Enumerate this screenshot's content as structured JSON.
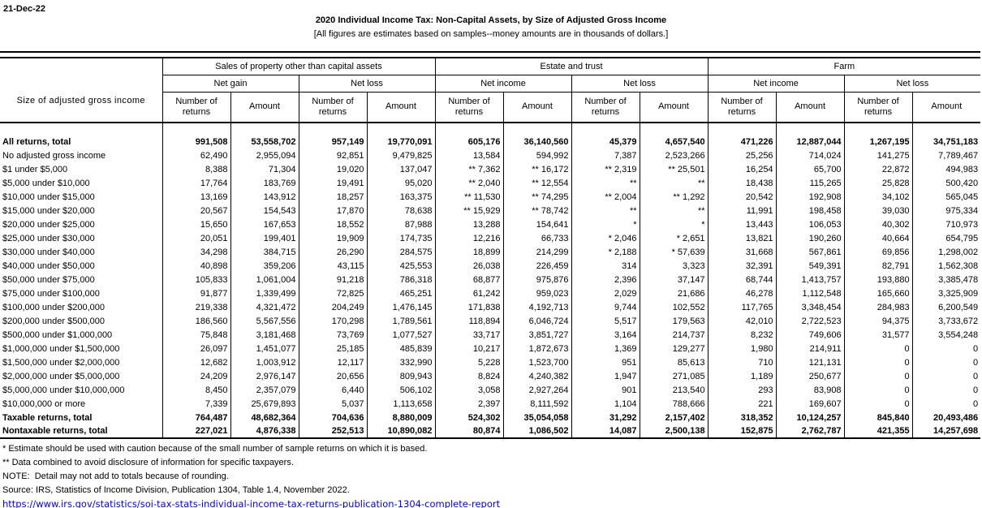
{
  "date": "21-Dec-22",
  "title": "2020 Individual Income Tax: Non-Capital Assets, by Size of Adjusted Gross Income",
  "subtitle": "[All figures are estimates based on samples--money amounts are in thousands of dollars.]",
  "table": {
    "row_header": "Size of adjusted gross income",
    "groups": [
      {
        "label": "Sales of property other than capital assets",
        "subgroups": [
          "Net gain",
          "Net loss"
        ]
      },
      {
        "label": "Estate and trust",
        "subgroups": [
          "Net income",
          "Net loss"
        ]
      },
      {
        "label": "Farm",
        "subgroups": [
          "Net income",
          "Net loss"
        ]
      }
    ],
    "measure_headers": [
      "Number of returns",
      "Amount"
    ],
    "rows": [
      {
        "label": "All returns, total",
        "bold": true,
        "values": [
          "991,508",
          "53,558,702",
          "957,149",
          "19,770,091",
          "605,176",
          "36,140,560",
          "45,379",
          "4,657,540",
          "471,226",
          "12,887,044",
          "1,267,195",
          "34,751,183"
        ]
      },
      {
        "label": "No adjusted gross income",
        "bold": false,
        "values": [
          "62,490",
          "2,955,094",
          "92,851",
          "9,479,825",
          "13,584",
          "594,992",
          "7,387",
          "2,523,266",
          "25,256",
          "714,024",
          "141,275",
          "7,789,467"
        ]
      },
      {
        "label": "$1 under $5,000",
        "bold": false,
        "values": [
          "8,388",
          "71,304",
          "19,020",
          "137,047",
          "** 7,362",
          "** 16,172",
          "** 2,319",
          "** 25,501",
          "16,254",
          "65,700",
          "22,872",
          "494,983"
        ]
      },
      {
        "label": "$5,000 under $10,000",
        "bold": false,
        "values": [
          "17,764",
          "183,769",
          "19,491",
          "95,020",
          "** 2,040",
          "** 12,554",
          "**",
          "**",
          "18,438",
          "115,265",
          "25,828",
          "500,420"
        ]
      },
      {
        "label": "$10,000 under $15,000",
        "bold": false,
        "values": [
          "13,169",
          "143,912",
          "18,257",
          "163,375",
          "** 11,530",
          "** 74,295",
          "** 2,004",
          "** 1,292",
          "20,542",
          "192,908",
          "34,102",
          "565,045"
        ]
      },
      {
        "label": "$15,000 under $20,000",
        "bold": false,
        "values": [
          "20,567",
          "154,543",
          "17,870",
          "78,638",
          "** 15,929",
          "** 78,742",
          "**",
          "**",
          "11,991",
          "198,458",
          "39,030",
          "975,334"
        ]
      },
      {
        "label": "$20,000 under $25,000",
        "bold": false,
        "values": [
          "15,650",
          "167,653",
          "18,552",
          "87,988",
          "13,288",
          "154,641",
          "*",
          "*",
          "13,443",
          "106,053",
          "40,302",
          "710,973"
        ]
      },
      {
        "label": "$25,000 under $30,000",
        "bold": false,
        "values": [
          "20,051",
          "199,401",
          "19,909",
          "174,735",
          "12,216",
          "66,733",
          "* 2,046",
          "* 2,651",
          "13,821",
          "190,260",
          "40,664",
          "654,795"
        ]
      },
      {
        "label": "$30,000 under $40,000",
        "bold": false,
        "values": [
          "34,298",
          "384,715",
          "26,290",
          "284,575",
          "18,899",
          "214,299",
          "* 2,188",
          "* 57,639",
          "31,668",
          "567,861",
          "69,856",
          "1,298,002"
        ]
      },
      {
        "label": "$40,000 under $50,000",
        "bold": false,
        "values": [
          "40,898",
          "359,206",
          "43,115",
          "425,553",
          "26,038",
          "226,459",
          "314",
          "3,323",
          "32,391",
          "549,391",
          "82,791",
          "1,562,308"
        ]
      },
      {
        "label": "$50,000 under $75,000",
        "bold": false,
        "values": [
          "105,833",
          "1,061,004",
          "91,218",
          "786,318",
          "68,877",
          "975,876",
          "2,396",
          "37,147",
          "68,744",
          "1,413,757",
          "193,880",
          "3,385,478"
        ]
      },
      {
        "label": "$75,000 under $100,000",
        "bold": false,
        "values": [
          "91,877",
          "1,339,499",
          "72,825",
          "465,251",
          "61,242",
          "959,023",
          "2,029",
          "21,686",
          "46,278",
          "1,112,548",
          "165,660",
          "3,325,909"
        ]
      },
      {
        "label": "$100,000 under $200,000",
        "bold": false,
        "values": [
          "219,338",
          "4,321,472",
          "204,249",
          "1,476,145",
          "171,838",
          "4,192,713",
          "9,744",
          "102,552",
          "117,765",
          "3,348,454",
          "284,983",
          "6,200,549"
        ]
      },
      {
        "label": "$200,000 under $500,000",
        "bold": false,
        "values": [
          "186,560",
          "5,567,556",
          "170,298",
          "1,789,561",
          "118,894",
          "6,046,724",
          "5,517",
          "179,563",
          "42,010",
          "2,722,523",
          "94,375",
          "3,733,672"
        ]
      },
      {
        "label": "$500,000 under $1,000,000",
        "bold": false,
        "values": [
          "75,848",
          "3,181,468",
          "73,769",
          "1,077,527",
          "33,717",
          "3,851,727",
          "3,164",
          "214,737",
          "8,232",
          "749,606",
          "31,577",
          "3,554,248"
        ]
      },
      {
        "label": "$1,000,000 under $1,500,000",
        "bold": false,
        "values": [
          "26,097",
          "1,451,077",
          "25,185",
          "485,839",
          "10,217",
          "1,872,673",
          "1,369",
          "129,277",
          "1,980",
          "214,911",
          "0",
          "0"
        ]
      },
      {
        "label": "$1,500,000 under $2,000,000",
        "bold": false,
        "values": [
          "12,682",
          "1,003,912",
          "12,117",
          "332,990",
          "5,228",
          "1,523,700",
          "951",
          "85,613",
          "710",
          "121,131",
          "0",
          "0"
        ]
      },
      {
        "label": "$2,000,000 under $5,000,000",
        "bold": false,
        "values": [
          "24,209",
          "2,976,147",
          "20,656",
          "809,943",
          "8,824",
          "4,240,382",
          "1,947",
          "271,085",
          "1,189",
          "250,677",
          "0",
          "0"
        ]
      },
      {
        "label": "$5,000,000 under $10,000,000",
        "bold": false,
        "values": [
          "8,450",
          "2,357,079",
          "6,440",
          "506,102",
          "3,058",
          "2,927,264",
          "901",
          "213,540",
          "293",
          "83,908",
          "0",
          "0"
        ]
      },
      {
        "label": "$10,000,000 or more",
        "bold": false,
        "values": [
          "7,339",
          "25,679,893",
          "5,037",
          "1,113,658",
          "2,397",
          "8,111,592",
          "1,104",
          "788,666",
          "221",
          "169,607",
          "0",
          "0"
        ]
      },
      {
        "label": "Taxable returns, total",
        "bold": true,
        "values": [
          "764,487",
          "48,682,364",
          "704,636",
          "8,880,009",
          "524,302",
          "35,054,058",
          "31,292",
          "2,157,402",
          "318,352",
          "10,124,257",
          "845,840",
          "20,493,486"
        ]
      },
      {
        "label": "Nontaxable returns, total",
        "bold": true,
        "values": [
          "227,021",
          "4,876,338",
          "252,513",
          "10,890,082",
          "80,874",
          "1,086,502",
          "14,087",
          "2,500,138",
          "152,875",
          "2,762,787",
          "421,355",
          "14,257,698"
        ]
      }
    ]
  },
  "footnotes": [
    "* Estimate should be used with caution because of the small number of sample returns on which it is based.",
    "** Data combined to avoid disclosure of information for specific taxpayers.",
    "NOTE:  Detail may not add to totals because of rounding.",
    "Source: IRS, Statistics of Income Division, Publication 1304, Table 1.4, November 2022."
  ],
  "link": "https://www.irs.gov/statistics/soi-tax-stats-individual-income-tax-returns-publication-1304-complete-report",
  "colors": {
    "link": "#0000EE"
  }
}
